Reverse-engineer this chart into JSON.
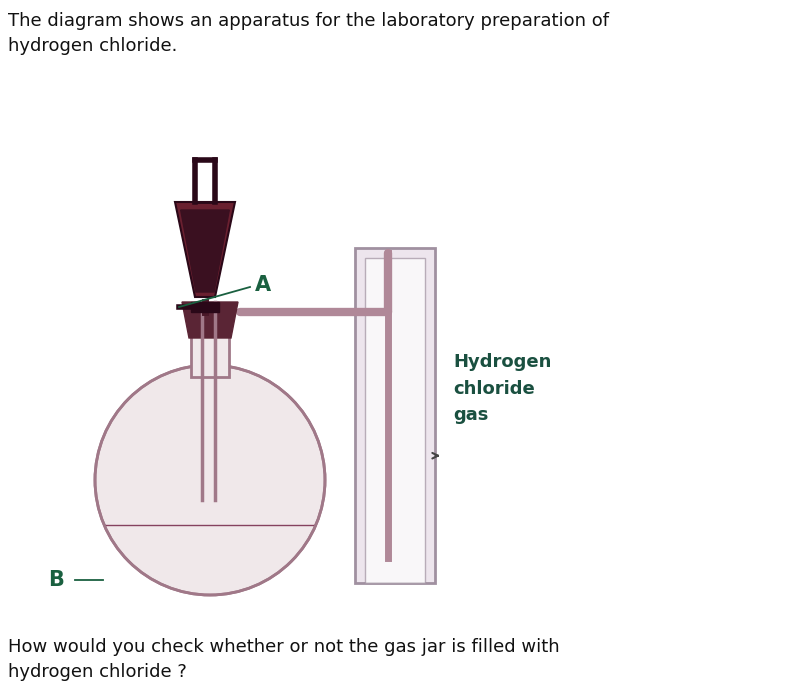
{
  "title_text": "The diagram shows an apparatus for the laboratory preparation of\nhydrogen chloride.",
  "bottom_text": "How would you check whether or not the gas jar is filled with\nhydrogen chloride ?",
  "label_A": "A",
  "label_B": "B",
  "label_hcl": "Hydrogen\nchloride\ngas",
  "bg_color": "#ffffff",
  "flask_fill": "#f0e8ea",
  "flask_outline": "#a07888",
  "flask_liquid_color": "#7a3050",
  "tube_color": "#b08898",
  "stopper_color": "#5a2535",
  "funnel_body_color": "#6a2030",
  "funnel_liquid": "#3a1020",
  "jar_fill": "#ede5ed",
  "jar_outline": "#a090a0",
  "label_color": "#1a6040",
  "text_color": "#111111",
  "hcl_label_color": "#1a5040",
  "arrow_color": "#555555"
}
